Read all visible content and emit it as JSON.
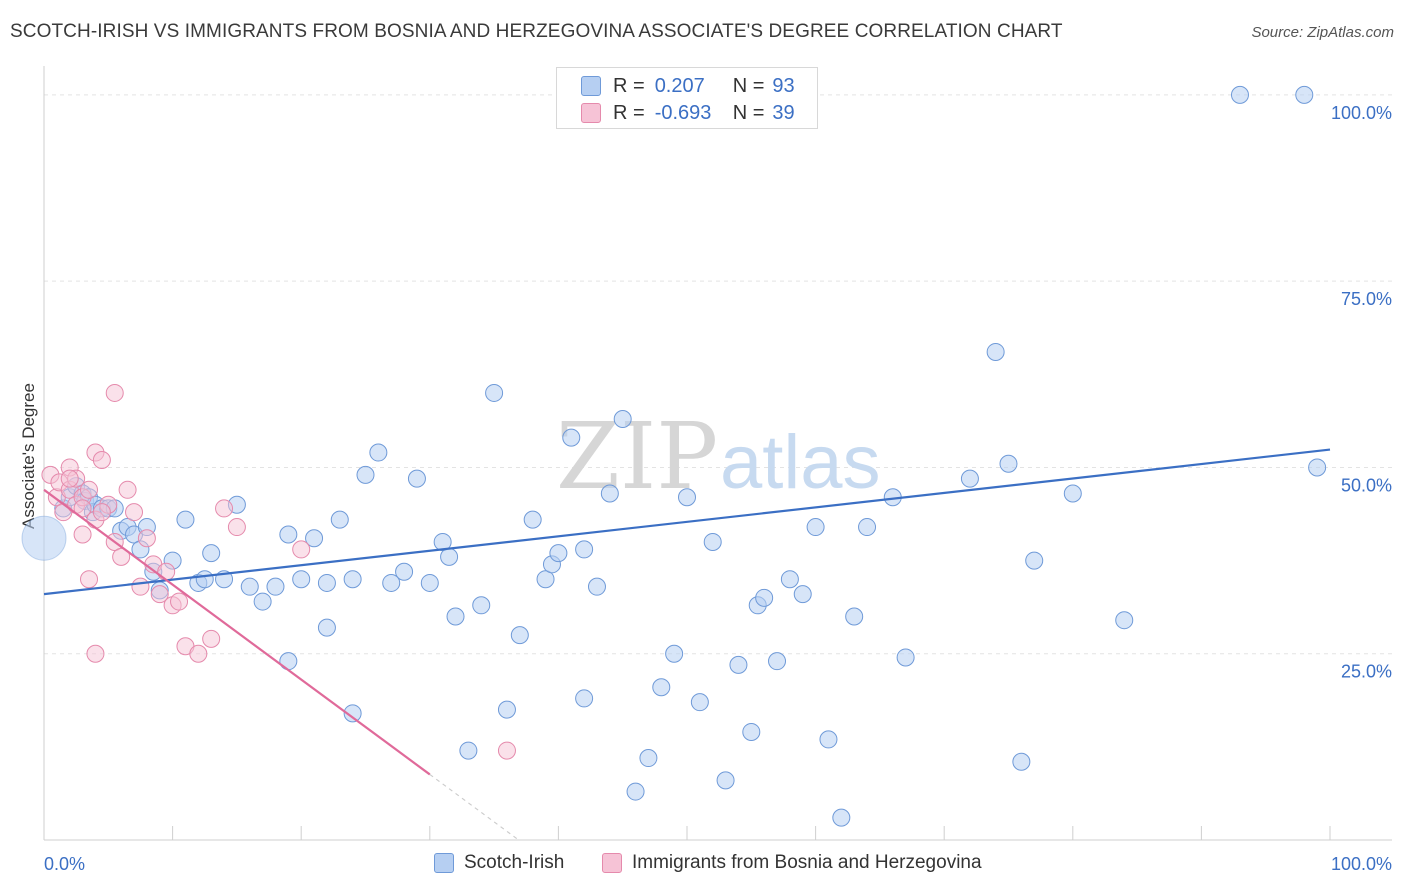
{
  "title": "SCOTCH-IRISH VS IMMIGRANTS FROM BOSNIA AND HERZEGOVINA ASSOCIATE'S DEGREE CORRELATION CHART",
  "source": "Source: ZipAtlas.com",
  "watermark": {
    "zip": "ZIP",
    "atlas": "atlas"
  },
  "legend": {
    "r_label": "R =",
    "n_label": "N =",
    "rows": [
      {
        "r": "0.207",
        "n": "93",
        "fill": "#b6cff2",
        "stroke": "#6f9ad8"
      },
      {
        "r": "-0.693",
        "n": "39",
        "fill": "#f6c3d6",
        "stroke": "#e58aac"
      }
    ]
  },
  "bottom_legend": [
    "Scotch-Irish",
    "Immigrants from Bosnia and Herzegovina"
  ],
  "chart_data": {
    "type": "scatter",
    "title": "SCOTCH-IRISH VS IMMIGRANTS FROM BOSNIA AND HERZEGOVINA ASSOCIATE'S DEGREE CORRELATION CHART",
    "xlabel": "",
    "ylabel": "Associate's Degree",
    "xlim": [
      0,
      100
    ],
    "ylim": [
      0,
      102
    ],
    "x_tick_labels": [
      "0.0%",
      "100.0%"
    ],
    "y_tick_labels": [
      "25.0%",
      "50.0%",
      "75.0%",
      "100.0%"
    ],
    "y_ticks": [
      25,
      50,
      75,
      100
    ],
    "grid": true,
    "colors": {
      "blue": "#3b6fc4",
      "pink": "#e06a9a",
      "blue_fill": "#b6cff2",
      "pink_fill": "#f6c3d6",
      "grid": "#e3e3e3"
    },
    "series": [
      {
        "name": "Scotch-Irish",
        "color": "#6f9ad8",
        "trend": {
          "x": [
            0,
            100
          ],
          "y": [
            33.0,
            52.4
          ]
        },
        "points": [
          [
            1.5,
            44.5
          ],
          [
            2,
            46
          ],
          [
            2.5,
            47.5
          ],
          [
            3,
            46.5
          ],
          [
            3.2,
            45.5
          ],
          [
            3.5,
            46
          ],
          [
            3.8,
            44
          ],
          [
            4,
            45
          ],
          [
            4.5,
            44.5
          ],
          [
            5,
            44.5
          ],
          [
            5.5,
            44.5
          ],
          [
            6,
            41.5
          ],
          [
            6.5,
            42
          ],
          [
            7,
            41
          ],
          [
            7.5,
            39
          ],
          [
            8,
            42
          ],
          [
            8.5,
            36
          ],
          [
            9,
            33.5
          ],
          [
            10,
            37.5
          ],
          [
            11,
            43
          ],
          [
            12,
            34.5
          ],
          [
            12.5,
            35
          ],
          [
            13,
            38.5
          ],
          [
            14,
            35
          ],
          [
            15,
            45
          ],
          [
            16,
            34
          ],
          [
            17,
            32
          ],
          [
            18,
            34
          ],
          [
            19,
            41
          ],
          [
            20,
            35
          ],
          [
            21,
            40.5
          ],
          [
            22,
            34.5
          ],
          [
            23,
            43
          ],
          [
            24,
            35
          ],
          [
            25,
            49
          ],
          [
            26,
            52
          ],
          [
            27,
            34.5
          ],
          [
            28,
            36
          ],
          [
            29,
            48.5
          ],
          [
            30,
            34.5
          ],
          [
            31,
            40
          ],
          [
            31.5,
            38
          ],
          [
            32,
            30
          ],
          [
            34,
            31.5
          ],
          [
            35,
            60
          ],
          [
            36,
            17.5
          ],
          [
            37,
            27.5
          ],
          [
            38,
            43
          ],
          [
            39,
            35
          ],
          [
            39.5,
            37
          ],
          [
            40,
            38.5
          ],
          [
            41,
            54
          ],
          [
            42,
            39
          ],
          [
            43,
            34
          ],
          [
            44,
            46.5
          ],
          [
            45,
            56.5
          ],
          [
            46,
            6.5
          ],
          [
            47,
            11
          ],
          [
            48,
            20.5
          ],
          [
            49,
            25
          ],
          [
            50,
            46
          ],
          [
            51,
            18.5
          ],
          [
            52,
            40
          ],
          [
            53,
            8
          ],
          [
            54,
            23.5
          ],
          [
            55,
            14.5
          ],
          [
            55.5,
            31.5
          ],
          [
            56,
            32.5
          ],
          [
            57,
            24
          ],
          [
            58,
            35
          ],
          [
            59,
            33
          ],
          [
            60,
            42
          ],
          [
            61,
            13.5
          ],
          [
            62,
            3
          ],
          [
            63,
            30
          ],
          [
            64,
            42
          ],
          [
            66,
            46
          ],
          [
            67,
            24.5
          ],
          [
            72,
            48.5
          ],
          [
            74,
            65.5
          ],
          [
            75,
            50.5
          ],
          [
            76,
            10.5
          ],
          [
            77,
            37.5
          ],
          [
            80,
            46.5
          ],
          [
            84,
            29.5
          ],
          [
            93,
            100
          ],
          [
            98,
            100
          ],
          [
            99,
            50
          ],
          [
            19,
            24
          ],
          [
            22,
            28.5
          ],
          [
            24,
            17
          ],
          [
            33,
            12
          ],
          [
            42,
            19
          ]
        ]
      },
      {
        "name": "Immigrants from Bosnia and Herzegovina",
        "color": "#e58aac",
        "trend": {
          "x": [
            0,
            30
          ],
          "y": [
            47.0,
            8.8
          ]
        },
        "points": [
          [
            0.5,
            49
          ],
          [
            1,
            46
          ],
          [
            1.2,
            48
          ],
          [
            1.5,
            44
          ],
          [
            2,
            47
          ],
          [
            2,
            50
          ],
          [
            2.5,
            45
          ],
          [
            2.5,
            48.5
          ],
          [
            3,
            46
          ],
          [
            3,
            41
          ],
          [
            3.5,
            47
          ],
          [
            3.5,
            35
          ],
          [
            4,
            43
          ],
          [
            4,
            52
          ],
          [
            4.5,
            51
          ],
          [
            5,
            45
          ],
          [
            5.5,
            40
          ],
          [
            5.5,
            60
          ],
          [
            6,
            38
          ],
          [
            6.5,
            47
          ],
          [
            7,
            44
          ],
          [
            7.5,
            34
          ],
          [
            8,
            40.5
          ],
          [
            8.5,
            37
          ],
          [
            9,
            33
          ],
          [
            9.5,
            36
          ],
          [
            10,
            31.5
          ],
          [
            10.5,
            32
          ],
          [
            11,
            26
          ],
          [
            12,
            25
          ],
          [
            13,
            27
          ],
          [
            14,
            44.5
          ],
          [
            15,
            42
          ],
          [
            20,
            39
          ],
          [
            36,
            12
          ],
          [
            4,
            25
          ],
          [
            4.5,
            44
          ],
          [
            3,
            44.5
          ],
          [
            2,
            48.5
          ]
        ]
      }
    ]
  }
}
